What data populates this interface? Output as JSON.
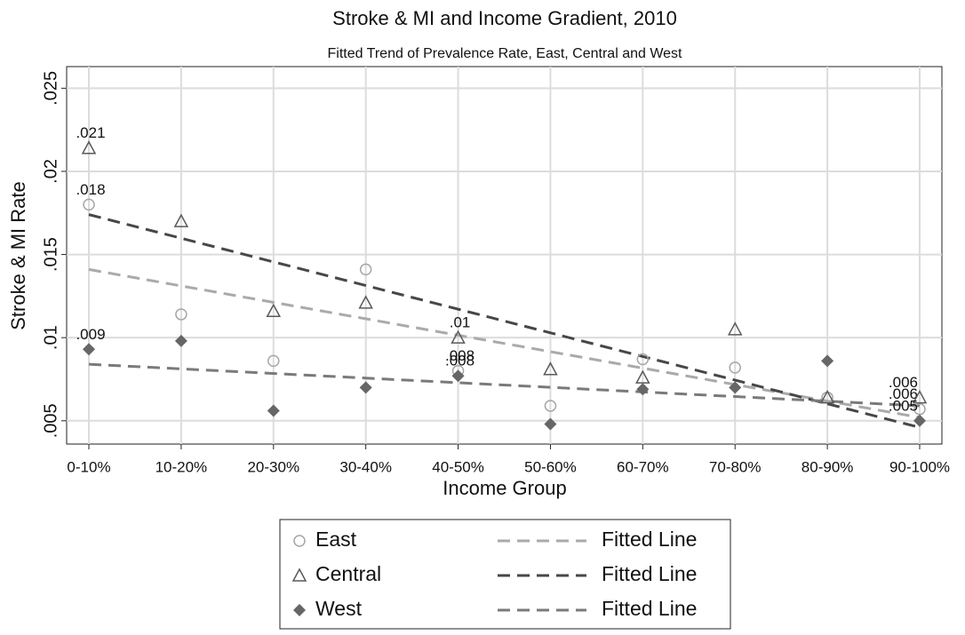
{
  "chart_data": {
    "type": "scatter",
    "title": "Stroke & MI and Income Gradient, 2010",
    "subtitle": "Fitted Trend of Prevalence Rate, East, Central and West",
    "x_label": "Income Group",
    "y_label": "Stroke & MI Rate",
    "categories": [
      "0-10%",
      "10-20%",
      "20-30%",
      "30-40%",
      "40-50%",
      "50-60%",
      "60-70%",
      "70-80%",
      "80-90%",
      "90-100%"
    ],
    "ylim": [
      0.0036,
      0.0263
    ],
    "yticks": [
      {
        "value": 0.005,
        "label": ".005"
      },
      {
        "value": 0.01,
        "label": ".01"
      },
      {
        "value": 0.015,
        "label": ".015"
      },
      {
        "value": 0.02,
        "label": ".02"
      },
      {
        "value": 0.025,
        "label": ".025"
      }
    ],
    "grid": true,
    "series": [
      {
        "name": "East",
        "marker": "circle",
        "color": "#a6a6a6",
        "values": [
          0.018,
          0.0114,
          0.0086,
          0.0141,
          0.008,
          0.0059,
          0.0087,
          0.0082,
          0.0064,
          0.0057
        ],
        "value_labels": [
          ".018",
          null,
          null,
          null,
          ".008",
          null,
          null,
          null,
          null,
          ".006"
        ],
        "fit_name": "Fitted Line",
        "fit_color": "#aaaaaa",
        "fit_values": [
          0.0141,
          0.0052
        ]
      },
      {
        "name": "Central",
        "marker": "triangle",
        "color": "#595959",
        "values": [
          0.0214,
          0.017,
          0.0116,
          0.0121,
          0.01,
          0.0081,
          0.0076,
          0.0105,
          0.0064,
          0.0064
        ],
        "value_labels": [
          ".021",
          null,
          null,
          null,
          ".01",
          null,
          null,
          null,
          null,
          ".006"
        ],
        "fit_name": "Fitted Line",
        "fit_color": "#474747",
        "fit_values": [
          0.0174,
          0.0046
        ]
      },
      {
        "name": "West",
        "marker": "diamond",
        "color": "#666666",
        "values": [
          0.0093,
          0.0098,
          0.0056,
          0.007,
          0.0077,
          0.0048,
          0.0069,
          0.007,
          0.0086,
          0.005
        ],
        "value_labels": [
          ".009",
          null,
          null,
          null,
          ".008",
          null,
          null,
          null,
          null,
          ".005"
        ],
        "fit_name": "Fitted Line",
        "fit_color": "#7a7a7a",
        "fit_values": [
          0.0084,
          0.0059
        ]
      }
    ]
  }
}
